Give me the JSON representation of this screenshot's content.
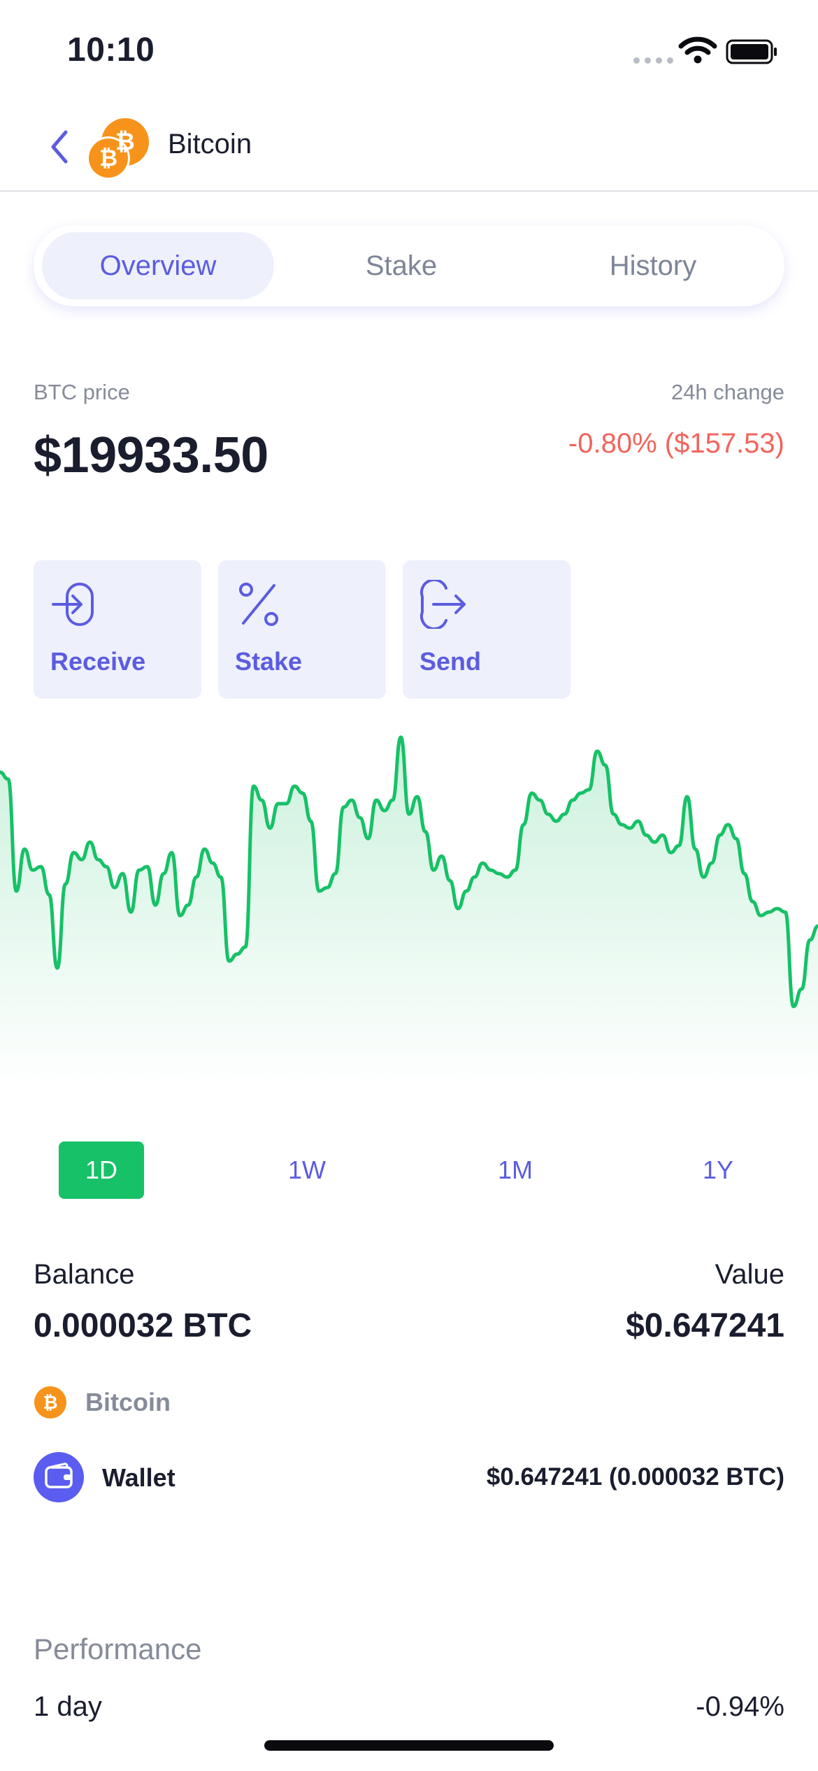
{
  "status_bar": {
    "time": "10:10",
    "icons": [
      "signal-dots-icon",
      "wifi-icon",
      "battery-icon"
    ]
  },
  "header": {
    "back_icon": "chevron-left-icon",
    "coin_icon": "bitcoin-logo-icon",
    "title": "Bitcoin"
  },
  "tabs": [
    {
      "label": "Overview",
      "active": true
    },
    {
      "label": "Stake",
      "active": false
    },
    {
      "label": "History",
      "active": false
    }
  ],
  "price": {
    "label": "BTC price",
    "value": "$19933.50",
    "change_label": "24h change",
    "change_value": "-0.80% ($157.53)"
  },
  "actions": [
    {
      "label": "Receive",
      "icon": "receive-arrow-icon"
    },
    {
      "label": "Stake",
      "icon": "percent-icon"
    },
    {
      "label": "Send",
      "icon": "send-arrow-icon"
    }
  ],
  "chart_data": {
    "type": "area",
    "title": "",
    "xlabel": "",
    "ylabel": "",
    "grid": false,
    "series": [
      {
        "values": [
          0.88,
          0.86,
          0.54,
          0.66,
          0.6,
          0.61,
          0.53,
          0.32,
          0.56,
          0.65,
          0.63,
          0.68,
          0.63,
          0.61,
          0.55,
          0.59,
          0.48,
          0.6,
          0.61,
          0.5,
          0.59,
          0.65,
          0.47,
          0.5,
          0.58,
          0.66,
          0.62,
          0.58,
          0.34,
          0.36,
          0.38,
          0.84,
          0.8,
          0.72,
          0.79,
          0.79,
          0.84,
          0.82,
          0.74,
          0.54,
          0.55,
          0.59,
          0.78,
          0.8,
          0.75,
          0.69,
          0.8,
          0.77,
          0.8,
          0.98,
          0.76,
          0.81,
          0.71,
          0.6,
          0.64,
          0.57,
          0.49,
          0.54,
          0.58,
          0.62,
          0.6,
          0.59,
          0.58,
          0.6,
          0.73,
          0.82,
          0.8,
          0.76,
          0.74,
          0.76,
          0.8,
          0.82,
          0.83,
          0.94,
          0.9,
          0.76,
          0.73,
          0.72,
          0.74,
          0.7,
          0.68,
          0.7,
          0.65,
          0.67,
          0.81,
          0.66,
          0.58,
          0.62,
          0.7,
          0.73,
          0.69,
          0.59,
          0.51,
          0.47,
          0.48,
          0.49,
          0.48,
          0.21,
          0.26,
          0.4,
          0.44
        ]
      }
    ],
    "color": "#17c167"
  },
  "ranges": [
    {
      "label": "1D",
      "active": true
    },
    {
      "label": "1W",
      "active": false
    },
    {
      "label": "1M",
      "active": false
    },
    {
      "label": "1Y",
      "active": false
    }
  ],
  "balance": {
    "label": "Balance",
    "value": "0.000032 BTC",
    "value_label": "Value",
    "value_amount": "$0.647241"
  },
  "asset": {
    "icon": "bitcoin-icon",
    "name": "Bitcoin"
  },
  "wallet": {
    "icon": "wallet-icon",
    "name": "Wallet",
    "amount": "$0.647241 (0.000032 BTC)"
  },
  "performance": {
    "title": "Performance",
    "rows": [
      {
        "label": "1 day",
        "value": "-0.94%"
      }
    ]
  },
  "colors": {
    "accent": "#5b5cdf",
    "positive": "#17c167",
    "negative": "#f2645c",
    "bitcoin": "#f7931a"
  }
}
